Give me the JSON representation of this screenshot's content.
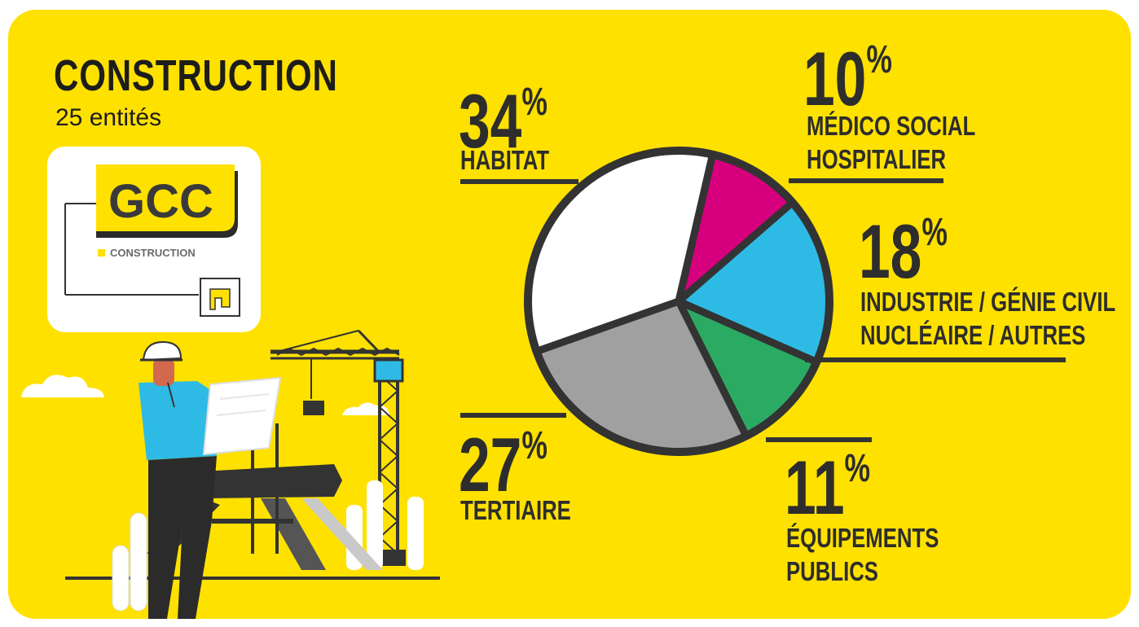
{
  "header": {
    "title": "CONSTRUCTION",
    "subtitle": "25 entités"
  },
  "logo": {
    "brand": "GCC",
    "tagline": "CONSTRUCTION"
  },
  "colors": {
    "background": "#FFE100",
    "text": "#2d2d2d",
    "habitat": "#FFFFFF",
    "medico": "#D6007E",
    "industrie": "#2DBBE6",
    "equipements": "#2BAA63",
    "tertiaire": "#A0A0A0",
    "outline": "#333333"
  },
  "chart_data": {
    "type": "pie",
    "slices": [
      {
        "key": "medico",
        "value": 10,
        "label_lines": [
          "MÉDICO SOCIAL",
          "HOSPITALIER"
        ]
      },
      {
        "key": "industrie",
        "value": 18,
        "label_lines": [
          "INDUSTRIE / GÉNIE CIVIL",
          "NUCLÉAIRE / AUTRES"
        ]
      },
      {
        "key": "equipements",
        "value": 11,
        "label_lines": [
          "ÉQUIPEMENTS",
          "PUBLICS"
        ]
      },
      {
        "key": "tertiaire",
        "value": 27,
        "label_lines": [
          "TERTIAIRE"
        ]
      },
      {
        "key": "habitat",
        "value": 34,
        "label_lines": [
          "HABITAT"
        ]
      }
    ],
    "unit": "%"
  }
}
